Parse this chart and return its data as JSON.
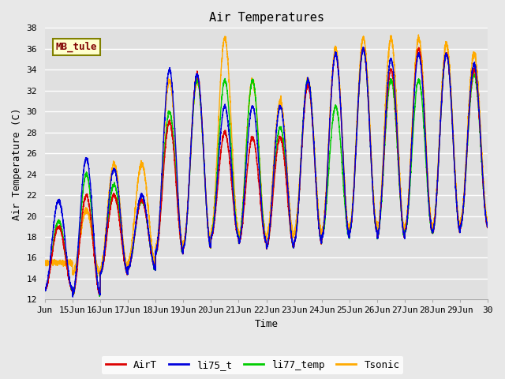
{
  "title": "Air Temperatures",
  "xlabel": "Time",
  "ylabel": "Air Temperature (C)",
  "ylim": [
    12,
    38
  ],
  "yticks": [
    12,
    14,
    16,
    18,
    20,
    22,
    24,
    26,
    28,
    30,
    32,
    34,
    36,
    38
  ],
  "xtick_labels": [
    "Jun",
    "15Jun",
    "16Jun",
    "17Jun",
    "18Jun",
    "19Jun",
    "20Jun",
    "21Jun",
    "22Jun",
    "23Jun",
    "24Jun",
    "25Jun",
    "26Jun",
    "27Jun",
    "28Jun",
    "29Jun",
    "30"
  ],
  "annotation_text": "MB_tule",
  "annotation_box_color": "#ffffcc",
  "annotation_text_color": "#800000",
  "annotation_border_color": "#808000",
  "colors": {
    "AirT": "#dd0000",
    "li75_t": "#0000dd",
    "li77_temp": "#00cc00",
    "Tsonic": "#ffaa00"
  },
  "legend_labels": [
    "AirT",
    "li75_t",
    "li77_temp",
    "Tsonic"
  ],
  "background_color": "#e8e8e8",
  "plot_bg_color": "#e0e0e0",
  "legend_bg_color": "#ffffff",
  "grid_color": "#ffffff",
  "n_days": 16,
  "points_per_day": 288,
  "base_temps": [
    13.0,
    12.5,
    14.5,
    15.0,
    16.5,
    17.0,
    18.0,
    17.5,
    17.0,
    17.5,
    18.0,
    18.5,
    18.0,
    18.5,
    18.5,
    19.0
  ],
  "max_temps_air": [
    19.0,
    22.0,
    22.0,
    21.5,
    29.0,
    33.5,
    28.0,
    27.5,
    27.5,
    32.5,
    35.5,
    36.0,
    34.0,
    36.0,
    35.5,
    34.0
  ],
  "max_temps_li75": [
    21.5,
    25.5,
    24.5,
    22.0,
    34.0,
    33.5,
    30.5,
    30.5,
    30.5,
    33.0,
    35.5,
    36.0,
    35.0,
    35.5,
    35.5,
    34.5
  ],
  "max_temps_li77": [
    19.5,
    24.0,
    23.0,
    21.5,
    30.0,
    33.0,
    33.0,
    33.0,
    28.5,
    33.0,
    30.5,
    36.0,
    33.0,
    33.0,
    35.5,
    33.5
  ],
  "max_temps_tsonic": [
    15.5,
    20.5,
    25.0,
    25.0,
    33.0,
    33.0,
    37.0,
    33.0,
    31.0,
    33.0,
    36.0,
    37.0,
    37.0,
    37.0,
    36.5,
    35.5
  ],
  "base_tsonic": [
    15.5,
    14.5,
    15.0,
    15.5,
    17.0,
    17.5,
    18.5,
    18.0,
    18.0,
    18.5,
    18.5,
    19.0,
    18.5,
    19.0,
    19.0,
    19.5
  ]
}
